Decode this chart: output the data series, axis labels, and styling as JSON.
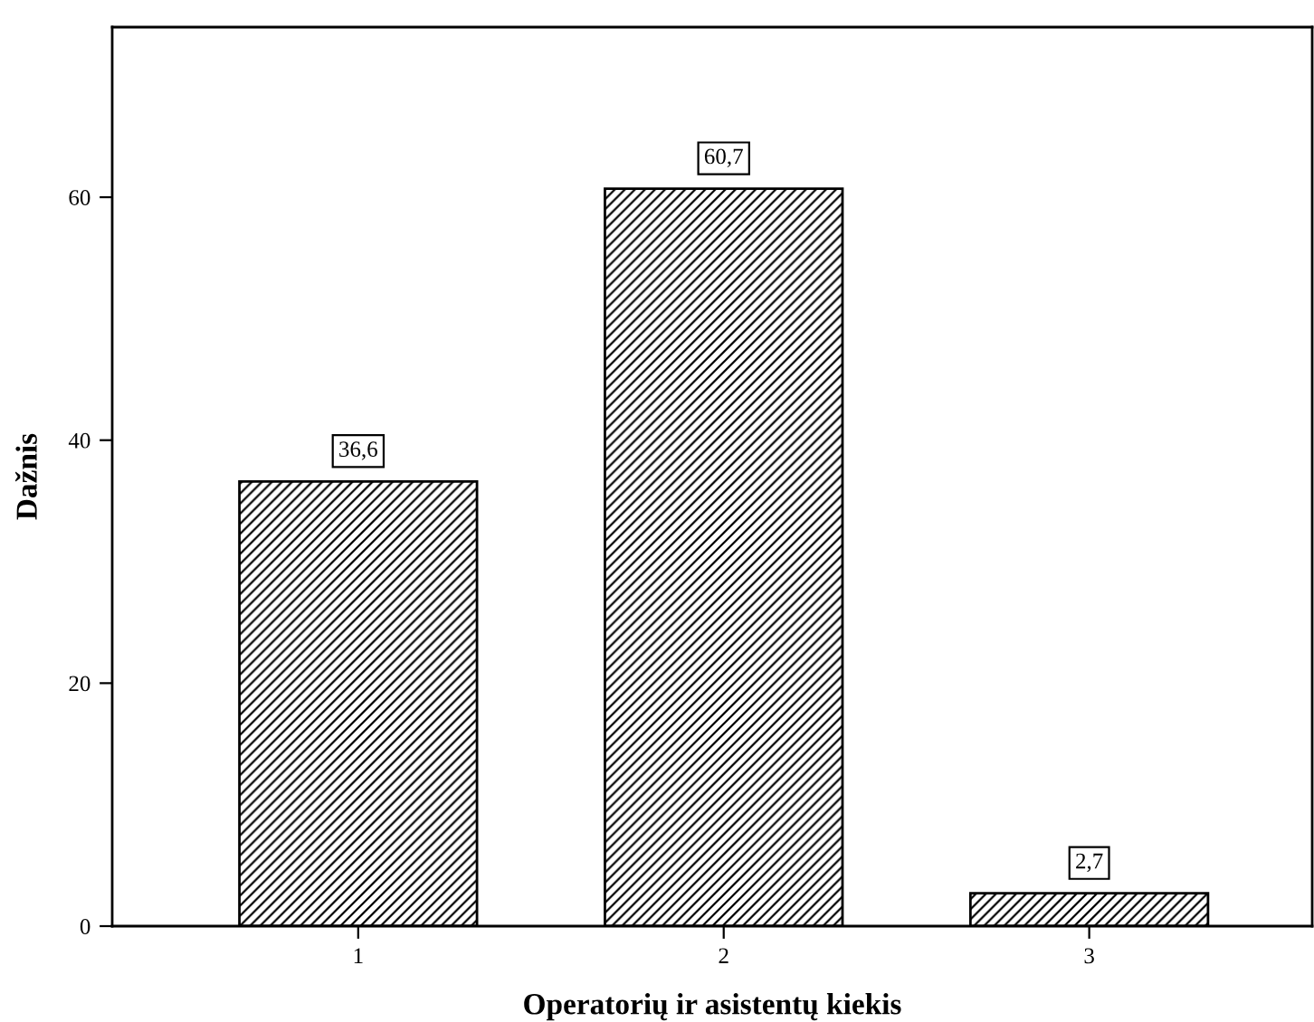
{
  "chart_data": {
    "type": "bar",
    "xlabel": "Operatorių ir asistentų kiekis",
    "ylabel": "Dažnis",
    "categories": [
      "1",
      "2",
      "3"
    ],
    "values": [
      36.6,
      60.7,
      2.7
    ],
    "value_labels": [
      "36,6",
      "60,7",
      "2,7"
    ],
    "color": "#000000",
    "ylim": [
      0,
      74
    ],
    "yticks": [
      0,
      20,
      40,
      60
    ],
    "grid": false
  }
}
